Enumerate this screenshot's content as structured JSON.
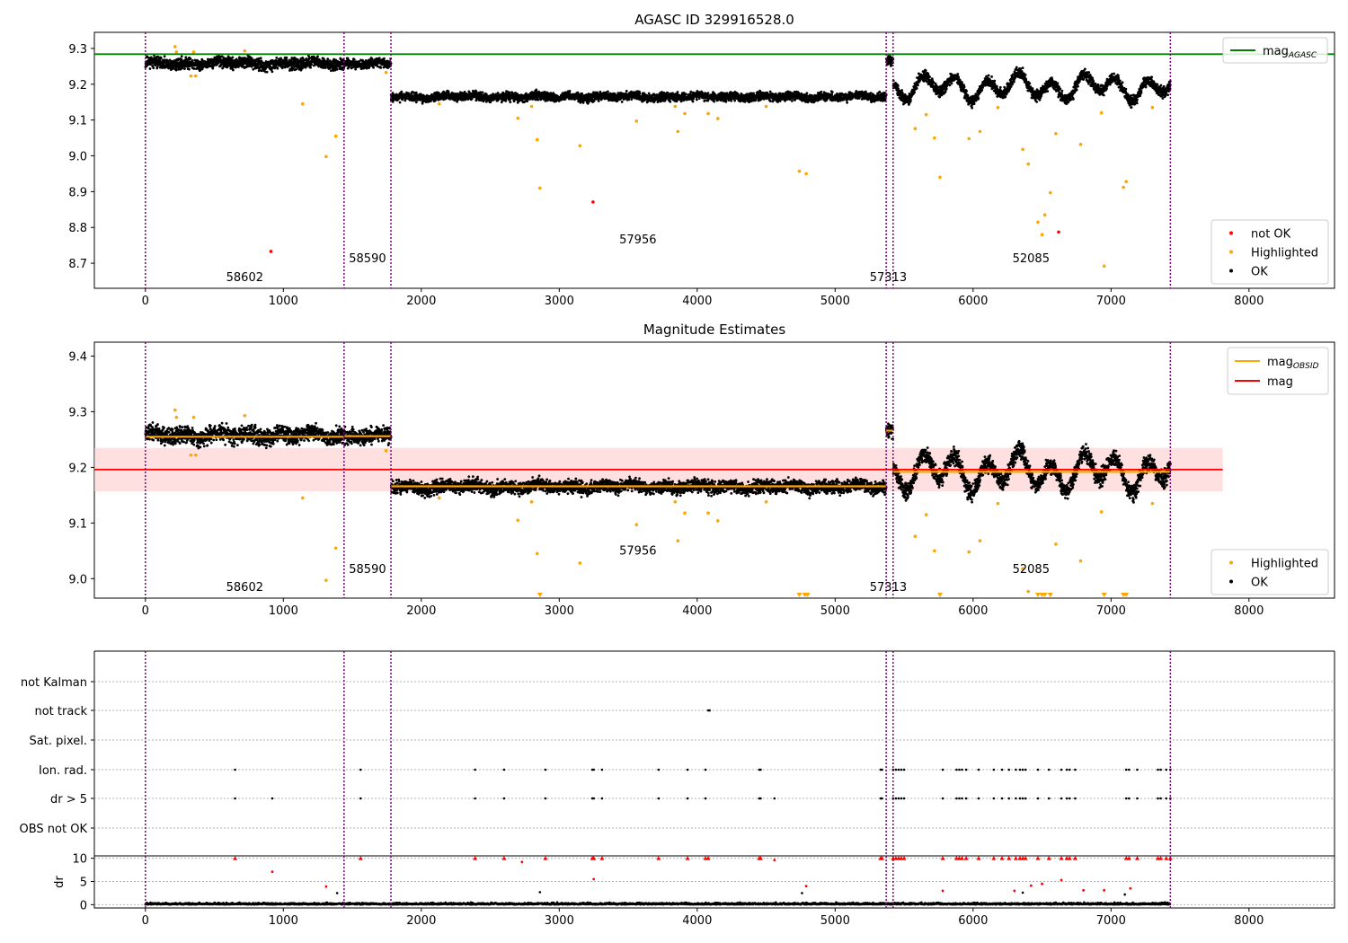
{
  "figure": {
    "title_top": "AGASC ID 329916528.0",
    "title_mid": "Magnitude Estimates"
  },
  "colors": {
    "ok": "#000000",
    "highlighted": "#ffa500",
    "not_ok": "#ff0000",
    "agasc_line": "#008000",
    "obsid_line": "#ffa500",
    "mag_line": "#ff0000",
    "mag_band": "#ffcccc",
    "obs_boundary": "#800080",
    "grid": "#b0b0b0"
  },
  "chart_data": [
    {
      "type": "scatter",
      "panel": "agasc",
      "xlim": [
        -370,
        8620
      ],
      "ylim": [
        8.63,
        9.345
      ],
      "x_ticks": [
        0,
        1000,
        2000,
        3000,
        4000,
        5000,
        6000,
        7000,
        8000
      ],
      "y_ticks": [
        8.7,
        8.8,
        8.9,
        9.0,
        9.1,
        9.2,
        9.3
      ],
      "y_tick_labels": [
        "8.7",
        "8.8",
        "8.9",
        "9.0",
        "9.1",
        "9.2",
        "9.3"
      ],
      "mag_agasc": 9.284,
      "legend_top": [
        {
          "label": "mag",
          "sub": "AGASC",
          "color_key": "agasc_line",
          "kind": "line"
        }
      ],
      "legend_bottom": [
        {
          "label": "not OK",
          "color_key": "not_ok",
          "kind": "dot"
        },
        {
          "label": "Highlighted",
          "color_key": "highlighted",
          "kind": "dot"
        },
        {
          "label": "OK",
          "color_key": "ok",
          "kind": "dot"
        }
      ],
      "obsid_labels": [
        {
          "text": "58602",
          "x": 720,
          "y": 8.65
        },
        {
          "text": "58590",
          "x": 1610,
          "y": 8.703
        },
        {
          "text": "57956",
          "x": 3570,
          "y": 8.755
        },
        {
          "text": "57313",
          "x": 5385,
          "y": 8.65
        },
        {
          "text": "52085",
          "x": 6420,
          "y": 8.703
        }
      ],
      "not_ok_points": [
        [
          910,
          8.733
        ],
        [
          3245,
          8.871
        ],
        [
          6620,
          8.787
        ]
      ],
      "highlighted_points": [
        [
          215,
          9.305
        ],
        [
          225,
          9.29
        ],
        [
          330,
          9.223
        ],
        [
          350,
          9.29
        ],
        [
          365,
          9.223
        ],
        [
          720,
          9.293
        ],
        [
          1140,
          9.145
        ],
        [
          1310,
          8.998
        ],
        [
          1380,
          9.055
        ],
        [
          1745,
          9.233
        ],
        [
          2130,
          9.145
        ],
        [
          2700,
          9.105
        ],
        [
          2840,
          9.045
        ],
        [
          2860,
          8.91
        ],
        [
          2800,
          9.138
        ],
        [
          3150,
          9.028
        ],
        [
          3560,
          9.097
        ],
        [
          3840,
          9.138
        ],
        [
          3860,
          9.068
        ],
        [
          3910,
          9.118
        ],
        [
          4080,
          9.118
        ],
        [
          4150,
          9.104
        ],
        [
          4740,
          8.957
        ],
        [
          4790,
          8.95
        ],
        [
          4500,
          9.138
        ],
        [
          5580,
          9.076
        ],
        [
          5660,
          9.115
        ],
        [
          5720,
          9.05
        ],
        [
          5760,
          8.94
        ],
        [
          5970,
          9.048
        ],
        [
          6050,
          9.068
        ],
        [
          6180,
          9.135
        ],
        [
          6360,
          9.018
        ],
        [
          6400,
          8.977
        ],
        [
          6470,
          8.815
        ],
        [
          6500,
          8.78
        ],
        [
          6520,
          8.835
        ],
        [
          6560,
          8.897
        ],
        [
          6600,
          9.062
        ],
        [
          6780,
          9.032
        ],
        [
          6930,
          9.12
        ],
        [
          6950,
          8.692
        ],
        [
          7090,
          8.912
        ],
        [
          7110,
          8.928
        ],
        [
          7300,
          9.135
        ]
      ],
      "segments": [
        {
          "x0": 0,
          "x1": 1440,
          "base": 9.258,
          "spread": 0.013,
          "wiggle": 0.004
        },
        {
          "x0": 1440,
          "x1": 1780,
          "base": 9.257,
          "spread": 0.011,
          "wiggle": 0.003
        },
        {
          "x0": 1780,
          "x1": 5370,
          "base": 9.165,
          "spread": 0.01,
          "wiggle": 0.003
        },
        {
          "x0": 5370,
          "x1": 5420,
          "base": 9.266,
          "spread": 0.012,
          "wiggle": 0.0
        },
        {
          "x0": 5420,
          "x1": 7430,
          "base": 9.192,
          "spread": 0.013,
          "wiggle": 0.025
        }
      ],
      "obs_boundaries": [
        0,
        1440,
        1780,
        5370,
        5420,
        7430
      ]
    },
    {
      "type": "scatter",
      "panel": "estimates",
      "xlim": [
        -370,
        8620
      ],
      "ylim": [
        8.965,
        9.425
      ],
      "x_ticks": [
        0,
        1000,
        2000,
        3000,
        4000,
        5000,
        6000,
        7000,
        8000
      ],
      "y_ticks": [
        9.0,
        9.1,
        9.2,
        9.3,
        9.4
      ],
      "y_tick_labels": [
        "9.0",
        "9.1",
        "9.2",
        "9.3",
        "9.4"
      ],
      "mag": 9.196,
      "mag_band": [
        9.157,
        9.235
      ],
      "mag_extent": [
        -370,
        7810
      ],
      "obsid_mags": [
        {
          "x0": 0,
          "x1": 1440,
          "mag": 9.255
        },
        {
          "x0": 1440,
          "x1": 1780,
          "mag": 9.256
        },
        {
          "x0": 1780,
          "x1": 5370,
          "mag": 9.166
        },
        {
          "x0": 5370,
          "x1": 5420,
          "mag": 9.266
        },
        {
          "x0": 5420,
          "x1": 7430,
          "mag": 9.192
        }
      ],
      "legend_top": [
        {
          "label": "mag",
          "sub": "OBSID",
          "color_key": "obsid_line",
          "kind": "line"
        },
        {
          "label": "mag",
          "sub": "",
          "color_key": "mag_line",
          "kind": "line"
        }
      ],
      "legend_bottom": [
        {
          "label": "Highlighted",
          "color_key": "highlighted",
          "kind": "dot"
        },
        {
          "label": "OK",
          "color_key": "ok",
          "kind": "dot"
        }
      ],
      "obsid_labels": [
        {
          "text": "58602",
          "x": 720,
          "y": 8.978
        },
        {
          "text": "58590",
          "x": 1610,
          "y": 9.01
        },
        {
          "text": "57956",
          "x": 3570,
          "y": 9.043
        },
        {
          "text": "57313",
          "x": 5385,
          "y": 8.978
        },
        {
          "text": "52085",
          "x": 6420,
          "y": 9.01
        }
      ],
      "highlighted_points": [
        [
          215,
          9.303
        ],
        [
          225,
          9.29
        ],
        [
          330,
          9.222
        ],
        [
          350,
          9.29
        ],
        [
          365,
          9.222
        ],
        [
          720,
          9.293
        ],
        [
          1140,
          9.145
        ],
        [
          1310,
          8.997
        ],
        [
          1380,
          9.055
        ],
        [
          1745,
          9.23
        ],
        [
          2130,
          9.145
        ],
        [
          2700,
          9.105
        ],
        [
          2840,
          9.045
        ],
        [
          2800,
          9.138
        ],
        [
          3150,
          9.028
        ],
        [
          3560,
          9.097
        ],
        [
          3840,
          9.138
        ],
        [
          3860,
          9.068
        ],
        [
          3910,
          9.118
        ],
        [
          4080,
          9.118
        ],
        [
          4150,
          9.104
        ],
        [
          4500,
          9.138
        ],
        [
          5580,
          9.076
        ],
        [
          5660,
          9.115
        ],
        [
          5720,
          9.05
        ],
        [
          5970,
          9.048
        ],
        [
          6050,
          9.068
        ],
        [
          6180,
          9.135
        ],
        [
          6360,
          9.018
        ],
        [
          6400,
          8.977
        ],
        [
          6600,
          9.062
        ],
        [
          6780,
          9.032
        ],
        [
          6930,
          9.12
        ],
        [
          7300,
          9.135
        ]
      ],
      "below_range_x": [
        2860,
        4740,
        4780,
        4800,
        5760,
        6470,
        6500,
        6520,
        6560,
        6950,
        7090,
        7110
      ]
    },
    {
      "type": "scatter",
      "panel": "flags",
      "categories": [
        "not Kalman",
        "not track",
        "Sat. pixel.",
        "Ion. rad.",
        "dr > 5",
        "OBS not OK"
      ],
      "flags": {
        "not Kalman": [],
        "not track": [
          4080,
          4090
        ],
        "Sat. pixel.": [],
        "Ion. rad.": [
          650,
          1560,
          2390,
          2600,
          2900,
          3240,
          3250,
          3310,
          3720,
          3930,
          4060,
          4450,
          4460,
          5330,
          5340,
          5420,
          5440,
          5460,
          5480,
          5500,
          5780,
          5880,
          5900,
          5920,
          5950,
          6040,
          6150,
          6210,
          6260,
          6310,
          6340,
          6360,
          6380,
          6470,
          6550,
          6640,
          6680,
          6700,
          6740,
          7110,
          7130,
          7190,
          7340,
          7360,
          7400,
          7430
        ],
        "dr > 5": [
          650,
          920,
          1560,
          2390,
          2600,
          2900,
          3240,
          3250,
          3310,
          3720,
          3930,
          4060,
          4450,
          4460,
          4560,
          5330,
          5340,
          5420,
          5440,
          5460,
          5480,
          5500,
          5780,
          5880,
          5900,
          5920,
          5950,
          6040,
          6150,
          6210,
          6260,
          6310,
          6340,
          6360,
          6380,
          6470,
          6550,
          6640,
          6680,
          6700,
          6740,
          7110,
          7130,
          7190,
          7340,
          7360,
          7400,
          7430
        ],
        "OBS not OK": []
      }
    },
    {
      "type": "scatter",
      "panel": "dr",
      "ylabel": "dr",
      "xlim": [
        -370,
        8620
      ],
      "ylim": [
        -0.7,
        10.5
      ],
      "y_ticks": [
        0,
        5,
        10
      ],
      "y_tick_labels": [
        "0",
        "5",
        "10"
      ],
      "x_ticks": [
        0,
        1000,
        2000,
        3000,
        4000,
        5000,
        6000,
        7000,
        8000
      ],
      "capped_points_x": [
        650,
        1560,
        2390,
        2600,
        2900,
        3240,
        3250,
        3310,
        3720,
        3930,
        4060,
        4080,
        4450,
        4460,
        5330,
        5340,
        5420,
        5440,
        5460,
        5480,
        5500,
        5780,
        5880,
        5900,
        5920,
        5950,
        6040,
        6150,
        6210,
        6260,
        6310,
        6340,
        6360,
        6380,
        6470,
        6550,
        6640,
        6680,
        6700,
        6740,
        7110,
        7130,
        7190,
        7340,
        7360,
        7400,
        7430
      ],
      "red_points": [
        [
          920,
          7.1
        ],
        [
          1310,
          3.9
        ],
        [
          2730,
          9.2
        ],
        [
          3250,
          5.5
        ],
        [
          4560,
          9.6
        ],
        [
          4790,
          4.0
        ],
        [
          5780,
          3.0
        ],
        [
          6300,
          3.0
        ],
        [
          6420,
          4.1
        ],
        [
          6500,
          4.5
        ],
        [
          6640,
          5.3
        ],
        [
          6800,
          3.1
        ],
        [
          6950,
          3.1
        ],
        [
          7140,
          3.5
        ]
      ],
      "black_outliers": [
        [
          1390,
          2.5
        ],
        [
          2860,
          2.7
        ],
        [
          4760,
          2.5
        ],
        [
          6360,
          2.6
        ],
        [
          7100,
          2.2
        ]
      ]
    }
  ]
}
